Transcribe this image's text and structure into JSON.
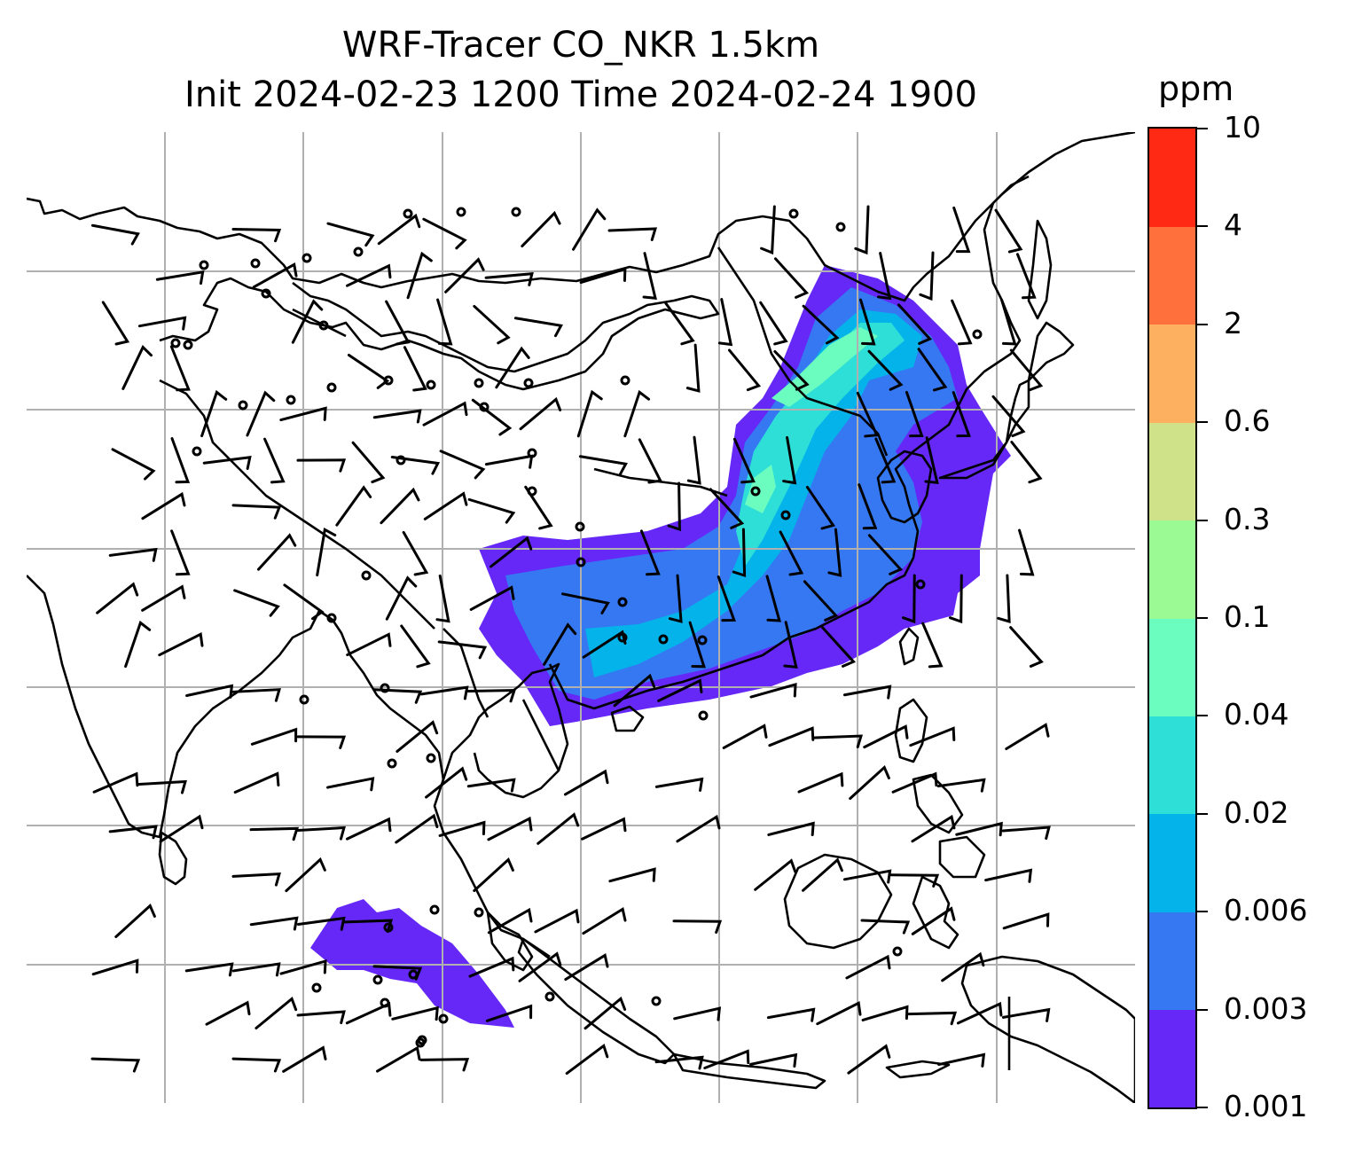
{
  "title": {
    "line1": "WRF-Tracer CO_NKR 1.5km",
    "line2": "Init 2024-02-23 1200 Time 2024-02-24 1900"
  },
  "colorbar": {
    "unit": "ppm",
    "levels": [
      "0.001",
      "0.003",
      "0.006",
      "0.02",
      "0.04",
      "0.1",
      "0.3",
      "0.6",
      "2",
      "4",
      "10"
    ],
    "colors": [
      "#6528f7",
      "#3578f2",
      "#04b3ea",
      "#2edfd8",
      "#6bfcbf",
      "#9cfa95",
      "#cfe28a",
      "#fdb05f",
      "#ff703c",
      "#ff2914"
    ]
  },
  "map": {
    "colors": {
      "coastline": "#000000",
      "gridline": "#b0b0b0",
      "barb": "#000000"
    },
    "features": [
      "coastlines",
      "country-borders",
      "lat-lon-gridlines",
      "wind-barbs",
      "co-tracer-concentration"
    ]
  }
}
